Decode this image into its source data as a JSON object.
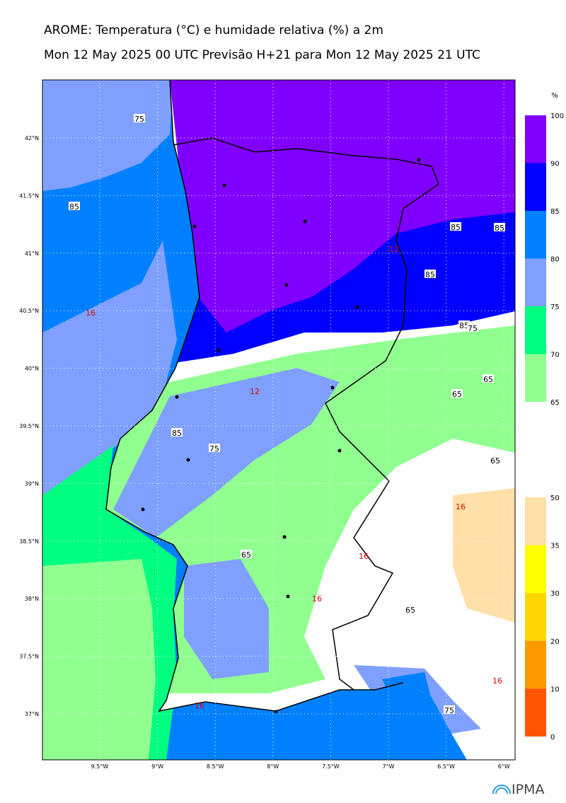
{
  "header": {
    "title": "AROME: Temperatura (°C) e humidade relativa (%) a 2m",
    "subtitle": "Mon 12 May 2025 00 UTC Previsão H+21 para Mon 12 May 2025 21 UTC"
  },
  "map": {
    "lat_labels": [
      "42°N",
      "41.5°N",
      "41°N",
      "40.5°N",
      "40°N",
      "39.5°N",
      "39°N",
      "38.5°N",
      "38°N",
      "37.5°N",
      "37°N"
    ],
    "lon_labels": [
      "9.5°W",
      "9°W",
      "8.5°W",
      "8°W",
      "7.5°W",
      "7°W",
      "6.5°W",
      "6°W"
    ],
    "contour_labels": [
      "75",
      "85",
      "85",
      "85",
      "85",
      "85",
      "75",
      "65",
      "65",
      "85",
      "75",
      "65",
      "65",
      "65",
      "75",
      "16",
      "12",
      "12",
      "16",
      "16",
      "16",
      "16",
      "16"
    ]
  },
  "colorbar_humidity": {
    "unit": "%",
    "labels": [
      "100",
      "90",
      "85",
      "80",
      "75",
      "70",
      "65"
    ]
  },
  "colorbar_temperature": {
    "labels": [
      "50",
      "35",
      "30",
      "20",
      "10",
      "0"
    ]
  },
  "logo": {
    "text": "IPMA"
  }
}
